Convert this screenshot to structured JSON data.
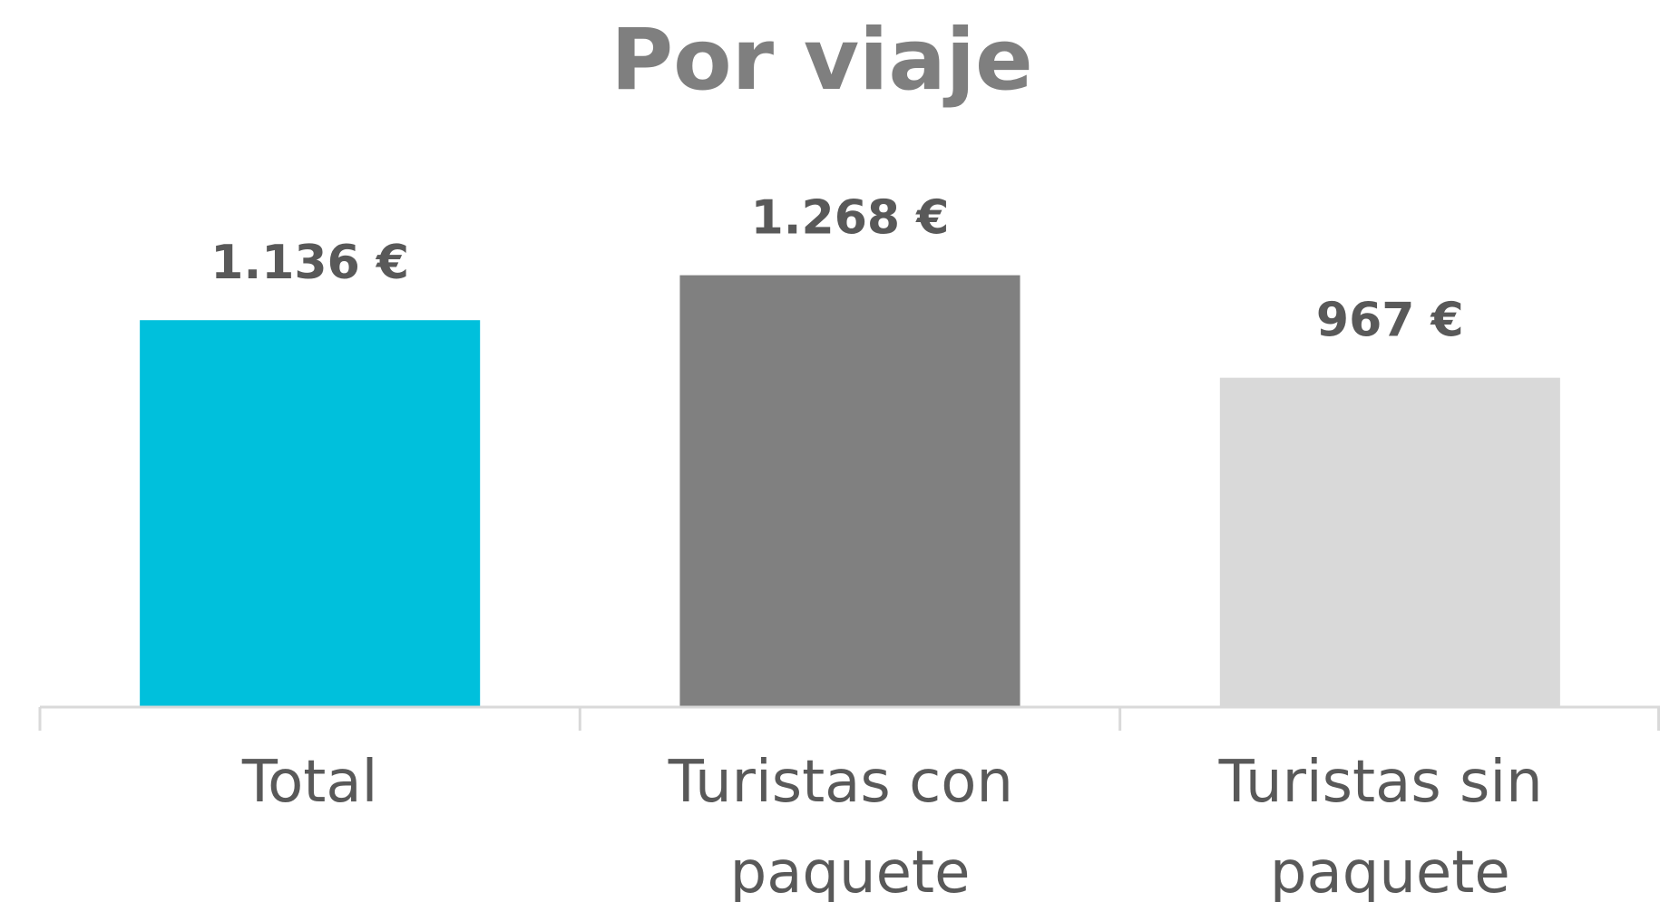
{
  "chart_data": {
    "type": "bar",
    "title": "Por viaje",
    "categories": [
      "Total",
      "Turistas con paquete",
      "Turistas sin paquete"
    ],
    "values": [
      1136,
      1268,
      967
    ],
    "value_labels": [
      "1.136 €",
      "1.268 €",
      "967 €"
    ],
    "colors": [
      "#00c0dc",
      "#808080",
      "#d9d9d9"
    ],
    "ylim": [
      0,
      1400
    ]
  }
}
